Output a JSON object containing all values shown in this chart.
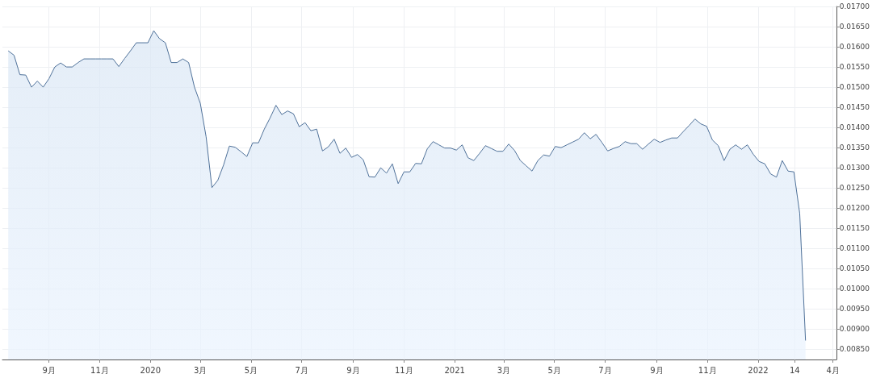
{
  "chart_data": {
    "type": "area",
    "color": "#4f7199",
    "x": [
      "2019-07-14",
      "2019-07-21",
      "2019-07-28",
      "2019-08-04",
      "2019-08-11",
      "2019-08-18",
      "2019-08-25",
      "2019-09-01",
      "2019-09-08",
      "2019-09-15",
      "2019-09-22",
      "2019-09-29",
      "2019-10-06",
      "2019-10-13",
      "2019-10-20",
      "2019-10-27",
      "2019-11-03",
      "2019-11-10",
      "2019-11-17",
      "2019-11-24",
      "2019-12-01",
      "2019-12-08",
      "2019-12-15",
      "2019-12-22",
      "2019-12-29",
      "2020-01-05",
      "2020-01-12",
      "2020-01-19",
      "2020-01-26",
      "2020-02-02",
      "2020-02-09",
      "2020-02-16",
      "2020-02-23",
      "2020-03-01",
      "2020-03-08",
      "2020-03-15",
      "2020-03-22",
      "2020-03-29",
      "2020-04-05",
      "2020-04-12",
      "2020-04-19",
      "2020-04-26",
      "2020-05-03",
      "2020-05-10",
      "2020-05-17",
      "2020-05-24",
      "2020-05-31",
      "2020-06-07",
      "2020-06-14",
      "2020-06-21",
      "2020-06-28",
      "2020-07-05",
      "2020-07-12",
      "2020-07-19",
      "2020-07-26",
      "2020-08-02",
      "2020-08-09",
      "2020-08-16",
      "2020-08-23",
      "2020-08-30",
      "2020-09-06",
      "2020-09-13",
      "2020-09-20",
      "2020-09-27",
      "2020-10-04",
      "2020-10-11",
      "2020-10-18",
      "2020-10-25",
      "2020-11-01",
      "2020-11-08",
      "2020-11-15",
      "2020-11-22",
      "2020-11-29",
      "2020-12-06",
      "2020-12-13",
      "2020-12-20",
      "2020-12-27",
      "2021-01-03",
      "2021-01-10",
      "2021-01-17",
      "2021-01-24",
      "2021-01-31",
      "2021-02-07",
      "2021-02-14",
      "2021-02-21",
      "2021-02-28",
      "2021-03-07",
      "2021-03-14",
      "2021-03-21",
      "2021-03-28",
      "2021-04-04",
      "2021-04-11",
      "2021-04-18",
      "2021-04-25",
      "2021-05-02",
      "2021-05-09",
      "2021-05-16",
      "2021-05-23",
      "2021-05-30",
      "2021-06-06",
      "2021-06-13",
      "2021-06-20",
      "2021-06-27",
      "2021-07-04",
      "2021-07-11",
      "2021-07-18",
      "2021-07-25",
      "2021-08-01",
      "2021-08-08",
      "2021-08-15",
      "2021-08-22",
      "2021-08-29",
      "2021-09-05",
      "2021-09-12",
      "2021-09-19",
      "2021-09-26",
      "2021-10-03",
      "2021-10-10",
      "2021-10-17",
      "2021-10-24",
      "2021-10-31",
      "2021-11-07",
      "2021-11-14",
      "2021-11-21",
      "2021-11-28",
      "2021-12-05",
      "2021-12-12",
      "2021-12-19",
      "2021-12-26",
      "2022-01-02",
      "2022-01-09",
      "2022-01-16",
      "2022-01-23",
      "2022-01-30",
      "2022-02-06",
      "2022-02-13",
      "2022-02-20",
      "2022-02-27"
    ],
    "values": [
      0.0159,
      0.01579,
      0.01531,
      0.0153,
      0.015,
      0.01515,
      0.015,
      0.01521,
      0.0155,
      0.0156,
      0.0155,
      0.0155,
      0.01561,
      0.0157,
      0.0157,
      0.0157,
      0.0157,
      0.0157,
      0.0157,
      0.01551,
      0.01571,
      0.0159,
      0.0161,
      0.0161,
      0.0161,
      0.0164,
      0.0162,
      0.0161,
      0.01561,
      0.01561,
      0.0157,
      0.01561,
      0.015,
      0.0146,
      0.01377,
      0.01251,
      0.01269,
      0.01307,
      0.01354,
      0.01351,
      0.0134,
      0.01328,
      0.01362,
      0.01362,
      0.01396,
      0.01424,
      0.01455,
      0.01432,
      0.01441,
      0.01434,
      0.01402,
      0.01412,
      0.01392,
      0.01396,
      0.01342,
      0.01352,
      0.01371,
      0.01336,
      0.01349,
      0.01326,
      0.01333,
      0.0132,
      0.01278,
      0.01277,
      0.013,
      0.01287,
      0.0131,
      0.01261,
      0.0129,
      0.0129,
      0.01311,
      0.0131,
      0.01347,
      0.01365,
      0.01357,
      0.01349,
      0.01349,
      0.01344,
      0.01357,
      0.01325,
      0.01318,
      0.01336,
      0.01355,
      0.01348,
      0.01341,
      0.01341,
      0.01359,
      0.01343,
      0.01318,
      0.01305,
      0.01292,
      0.01318,
      0.01332,
      0.01329,
      0.01353,
      0.0135,
      0.01357,
      0.01364,
      0.01371,
      0.01387,
      0.01372,
      0.01383,
      0.01363,
      0.01342,
      0.01348,
      0.01353,
      0.01365,
      0.0136,
      0.0136,
      0.01346,
      0.01359,
      0.01371,
      0.01363,
      0.01369,
      0.01374,
      0.01374,
      0.0139,
      0.01405,
      0.01421,
      0.01409,
      0.01403,
      0.01369,
      0.01355,
      0.01318,
      0.01346,
      0.01357,
      0.01346,
      0.01357,
      0.01334,
      0.01316,
      0.0131,
      0.01285,
      0.01277,
      0.01318,
      0.01292,
      0.0129,
      0.01187,
      0.00872
    ],
    "xlim": [
      "2019-07-07",
      "2022-04-05"
    ],
    "xticks": [
      {
        "value": "2019-09-01",
        "label": "9月"
      },
      {
        "value": "2019-11-01",
        "label": "11月"
      },
      {
        "value": "2020-01-01",
        "label": "2020"
      },
      {
        "value": "2020-03-01",
        "label": "3月"
      },
      {
        "value": "2020-05-01",
        "label": "5月"
      },
      {
        "value": "2020-07-01",
        "label": "7月"
      },
      {
        "value": "2020-09-01",
        "label": "9月"
      },
      {
        "value": "2020-11-01",
        "label": "11月"
      },
      {
        "value": "2021-01-01",
        "label": "2021"
      },
      {
        "value": "2021-03-01",
        "label": "3月"
      },
      {
        "value": "2021-05-01",
        "label": "5月"
      },
      {
        "value": "2021-07-01",
        "label": "7月"
      },
      {
        "value": "2021-09-01",
        "label": "9月"
      },
      {
        "value": "2021-11-01",
        "label": "11月"
      },
      {
        "value": "2022-01-01",
        "label": "2022"
      },
      {
        "value": "2022-02-14",
        "label": "14"
      },
      {
        "value": "2022-04-01",
        "label": "4月"
      }
    ],
    "ylim": [
      0.00825,
      0.017
    ],
    "yticks": [
      {
        "value": 0.0085,
        "label": "0.00850"
      },
      {
        "value": 0.009,
        "label": "0.00900"
      },
      {
        "value": 0.0095,
        "label": "0.00950"
      },
      {
        "value": 0.01,
        "label": "0.01000"
      },
      {
        "value": 0.0105,
        "label": "0.01050"
      },
      {
        "value": 0.011,
        "label": "0.01100"
      },
      {
        "value": 0.0115,
        "label": "0.01150"
      },
      {
        "value": 0.012,
        "label": "0.01200"
      },
      {
        "value": 0.0125,
        "label": "0.01250"
      },
      {
        "value": 0.013,
        "label": "0.01300"
      },
      {
        "value": 0.0135,
        "label": "0.01350"
      },
      {
        "value": 0.014,
        "label": "0.01400"
      },
      {
        "value": 0.0145,
        "label": "0.01450"
      },
      {
        "value": 0.015,
        "label": "0.01500"
      },
      {
        "value": 0.0155,
        "label": "0.01550"
      },
      {
        "value": 0.016,
        "label": "0.01600"
      },
      {
        "value": 0.0165,
        "label": "0.01650"
      },
      {
        "value": 0.017,
        "label": "0.01700"
      }
    ],
    "grid": true,
    "marker": "none",
    "line_style": "solid"
  }
}
